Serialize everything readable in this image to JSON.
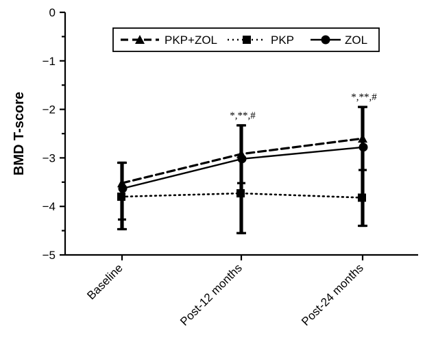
{
  "chart_data": {
    "type": "line",
    "title": "",
    "xlabel": "",
    "ylabel": "BMD T-score",
    "categories": [
      "Baseline",
      "Post-12 months",
      "Post-24 months"
    ],
    "ylim": [
      -5,
      0
    ],
    "yticks": [
      "0",
      "−1",
      "−2",
      "−3",
      "−4",
      "−5"
    ],
    "legend_position": "top",
    "series": [
      {
        "name": "PKP+ZOL",
        "line_style": "dashed",
        "marker": "triangle",
        "values": [
          -3.52,
          -2.92,
          -2.6
        ],
        "error_low": [
          -4.27,
          -3.52,
          -3.25
        ],
        "error_high": [
          -3.1,
          -2.33,
          -1.95
        ]
      },
      {
        "name": "PKP",
        "line_style": "dotted",
        "marker": "square",
        "values": [
          -3.8,
          -3.73,
          -3.82
        ],
        "error_low": [
          -4.47,
          -4.55,
          -4.4
        ],
        "error_high": [
          -3.1,
          -2.33,
          -1.95
        ]
      },
      {
        "name": "ZOL",
        "line_style": "solid",
        "marker": "circle",
        "values": [
          -3.63,
          -3.02,
          -2.78
        ],
        "error_low": [
          -4.47,
          -4.55,
          -4.4
        ],
        "error_high": [
          -3.1,
          -2.33,
          -1.95
        ]
      }
    ],
    "annotations": [
      {
        "category": "Post-12 months",
        "text": "*,**,#"
      },
      {
        "category": "Post-24 months",
        "text": "*,**,#"
      }
    ],
    "color": "#000000"
  }
}
